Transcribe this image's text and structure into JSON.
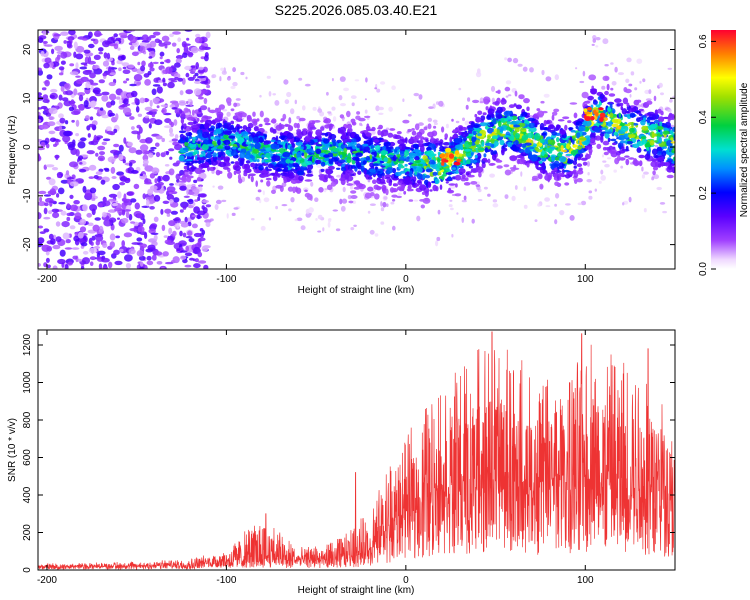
{
  "chart_data": [
    {
      "type": "heatmap",
      "title": "S225.2026.085.03.40.E21",
      "xlabel": "Height of straight line (km)",
      "ylabel": "Frequency (Hz)",
      "xlim": [
        -205,
        150
      ],
      "ylim": [
        -25,
        24
      ],
      "x_ticks": [
        -200,
        -100,
        0,
        100
      ],
      "y_ticks": [
        -20,
        -10,
        0,
        10,
        20
      ],
      "colorbar": {
        "label": "Normalized spectral amplitude",
        "range": [
          0.0,
          0.63
        ],
        "ticks": [
          0.0,
          0.2,
          0.4,
          0.6
        ],
        "colormap": "rainbow (violet to red)"
      },
      "ridge": {
        "x": [
          -120,
          -100,
          -80,
          -60,
          -40,
          -20,
          0,
          20,
          40,
          55,
          65,
          75,
          90,
          100,
          105,
          120,
          140,
          150
        ],
        "freq_center": [
          0,
          1,
          -1,
          -2,
          -1,
          -2,
          -3,
          -4,
          1,
          4,
          3,
          0,
          -1,
          2,
          7,
          4,
          2,
          0
        ]
      },
      "peak_amplitude": 0.62,
      "peak_location": [
        {
          "x": 25,
          "freq": -2
        },
        {
          "x": 105,
          "freq": 7
        }
      ]
    },
    {
      "type": "line",
      "xlabel": "Height of straight line (km)",
      "ylabel": "SNR (10 * v/v)",
      "xlim": [
        -205,
        150
      ],
      "ylim": [
        0,
        1280
      ],
      "x_ticks": [
        -200,
        -100,
        0,
        100
      ],
      "y_ticks": [
        0,
        200,
        400,
        600,
        800,
        1000,
        1200
      ],
      "series": [
        {
          "name": "SNR",
          "color": "#ee3333",
          "envelope_x": [
            -205,
            -150,
            -120,
            -100,
            -80,
            -60,
            -40,
            -20,
            -10,
            0,
            10,
            20,
            30,
            50,
            70,
            90,
            100,
            120,
            140,
            150
          ],
          "envelope_mean": [
            15,
            18,
            25,
            45,
            60,
            45,
            50,
            90,
            180,
            280,
            330,
            380,
            400,
            430,
            400,
            420,
            430,
            400,
            380,
            330
          ],
          "envelope_max": [
            35,
            45,
            60,
            110,
            300,
            120,
            150,
            320,
            560,
            700,
            900,
            1000,
            1080,
            1270,
            1080,
            1000,
            1260,
            1180,
            1000,
            800
          ],
          "spikes": [
            {
              "x": -78,
              "y": 300
            },
            {
              "x": -28,
              "y": 520
            },
            {
              "x": 48,
              "y": 1270
            },
            {
              "x": 98,
              "y": 1260
            },
            {
              "x": 135,
              "y": 1180
            }
          ]
        }
      ]
    }
  ]
}
